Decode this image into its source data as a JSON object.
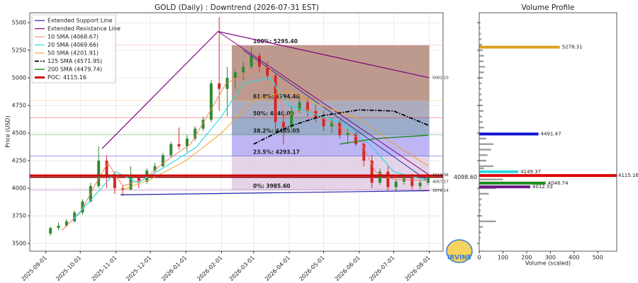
{
  "chart_data": {
    "type": "candlestick",
    "title": "GOLD (Daily) : Downtrend (2026-07-31 EST)",
    "y_label": "Price (USD)",
    "xlim": [
      "2025-08-18",
      "2026-08-13"
    ],
    "xticks": [
      "2025-09-01",
      "2025-10-01",
      "2025-11-01",
      "2025-12-01",
      "2026-01-01",
      "2026-02-01",
      "2026-03-01",
      "2026-04-01",
      "2026-05-01",
      "2026-06-01",
      "2026-07-01",
      "2026-08-01"
    ],
    "ylim": [
      3430,
      5590
    ],
    "yticks": [
      3500,
      3750,
      4000,
      4250,
      4500,
      4750,
      5000,
      5250,
      5500
    ],
    "grid": true,
    "legend": "upper left",
    "up_color": "#2e8b2e",
    "down_color": "#d62728",
    "candles": {
      "x": [
        "2025-09-05",
        "2025-09-12",
        "2025-09-19",
        "2025-09-26",
        "2025-10-03",
        "2025-10-10",
        "2025-10-17",
        "2025-10-24",
        "2025-10-31",
        "2025-11-07",
        "2025-11-14",
        "2025-11-21",
        "2025-11-28",
        "2025-12-05",
        "2025-12-12",
        "2025-12-19",
        "2025-12-26",
        "2026-01-02",
        "2026-01-09",
        "2026-01-16",
        "2026-01-23",
        "2026-01-30",
        "2026-02-06",
        "2026-02-13",
        "2026-02-20",
        "2026-02-27",
        "2026-03-06",
        "2026-03-13",
        "2026-03-20",
        "2026-03-27",
        "2026-04-03",
        "2026-04-10",
        "2026-04-17",
        "2026-04-24",
        "2026-05-01",
        "2026-05-08",
        "2026-05-15",
        "2026-05-22",
        "2026-05-29",
        "2026-06-05",
        "2026-06-12",
        "2026-06-19",
        "2026-06-26",
        "2026-07-03",
        "2026-07-10",
        "2026-07-17",
        "2026-07-24",
        "2026-07-31"
      ],
      "open": [
        3590,
        3640,
        3660,
        3700,
        3780,
        3880,
        4020,
        4250,
        4100,
        4000,
        3990,
        4100,
        4060,
        4160,
        4200,
        4300,
        4400,
        4380,
        4450,
        4540,
        4620,
        4950,
        4900,
        5000,
        5050,
        5100,
        5200,
        5100,
        5020,
        4600,
        4550,
        4700,
        4780,
        4700,
        4640,
        4560,
        4600,
        4480,
        4500,
        4400,
        4250,
        4050,
        4150,
        4010,
        4060,
        4090,
        4020,
        4050
      ],
      "high": [
        3650,
        3690,
        3720,
        3800,
        3900,
        4050,
        4380,
        4300,
        4150,
        4030,
        4200,
        4120,
        4180,
        4230,
        4320,
        4420,
        4550,
        4480,
        4560,
        4650,
        4980,
        5550,
        5100,
        5080,
        5150,
        5280,
        5230,
        5150,
        5040,
        4700,
        4750,
        4850,
        4820,
        4760,
        4700,
        4640,
        4620,
        4540,
        4510,
        4420,
        4300,
        4180,
        4200,
        4080,
        4120,
        4130,
        4080,
        4110
      ],
      "low": [
        3570,
        3620,
        3650,
        3690,
        3760,
        3870,
        4000,
        4000,
        3950,
        3930,
        3980,
        4000,
        4040,
        4140,
        4190,
        4280,
        4350,
        4330,
        4430,
        4520,
        4600,
        4700,
        4650,
        4900,
        4980,
        5080,
        5050,
        4980,
        4500,
        4400,
        4520,
        4680,
        4650,
        4600,
        4520,
        4500,
        4450,
        4400,
        4380,
        4200,
        4000,
        4030,
        3980,
        3970,
        4030,
        3990,
        3990,
        4030
      ],
      "close": [
        3640,
        3660,
        3700,
        3780,
        3880,
        4020,
        4250,
        4100,
        4000,
        3990,
        4100,
        4060,
        4160,
        4200,
        4300,
        4400,
        4380,
        4450,
        4540,
        4620,
        4950,
        4900,
        5000,
        5050,
        5100,
        5200,
        5100,
        5020,
        4600,
        4550,
        4700,
        4780,
        4700,
        4640,
        4560,
        4600,
        4480,
        4500,
        4400,
        4250,
        4050,
        4150,
        4010,
        4060,
        4090,
        4020,
        4050,
        4100
      ]
    },
    "series": [
      {
        "name": "Extended Support Line",
        "color": "#1f1fa8",
        "width": 1.2,
        "x": [
          "2025-11-05",
          "2026-08-01"
        ],
        "values": [
          3940,
          3978.14
        ]
      },
      {
        "name": "Extended Resistance Line",
        "color": "#800080",
        "width": 1.2,
        "x": [
          "2025-10-20",
          "2026-01-29",
          "2026-08-01"
        ],
        "values": [
          4360,
          5420,
          5001.1
        ]
      },
      {
        "name": "10 SMA (4068.67)",
        "color": "#f08060",
        "width": 1,
        "x": [
          "2025-09-15",
          "2025-10-01",
          "2025-10-15",
          "2025-10-25",
          "2025-11-07",
          "2025-11-25",
          "2025-12-15",
          "2026-01-05",
          "2026-01-25",
          "2026-02-05",
          "2026-02-25",
          "2026-03-15",
          "2026-03-28",
          "2026-04-15",
          "2026-05-10",
          "2026-06-01",
          "2026-06-15",
          "2026-07-01",
          "2026-07-31"
        ],
        "values": [
          3620,
          3780,
          4050,
          4230,
          4020,
          4080,
          4250,
          4400,
          4750,
          4950,
          5050,
          5100,
          4650,
          4720,
          4580,
          4450,
          4150,
          4080,
          4068.67
        ]
      },
      {
        "name": "20 SMA (4069.66)",
        "color": "#30d8e0",
        "width": 1.2,
        "x": [
          "2025-09-25",
          "2025-10-15",
          "2025-11-01",
          "2025-11-20",
          "2025-12-15",
          "2026-01-10",
          "2026-02-01",
          "2026-02-20",
          "2026-03-15",
          "2026-04-01",
          "2026-04-20",
          "2026-05-15",
          "2026-06-10",
          "2026-07-01",
          "2026-07-31"
        ],
        "values": [
          3720,
          3950,
          4150,
          4050,
          4200,
          4370,
          4650,
          4950,
          5000,
          4750,
          4680,
          4600,
          4400,
          4150,
          4069.66
        ]
      },
      {
        "name": "50 SMA (4201.91)",
        "color": "#f0a020",
        "width": 1,
        "x": [
          "2025-11-05",
          "2025-12-01",
          "2026-01-01",
          "2026-02-01",
          "2026-03-01",
          "2026-04-01",
          "2026-05-01",
          "2026-06-01",
          "2026-07-01",
          "2026-07-31"
        ],
        "values": [
          3980,
          4080,
          4250,
          4500,
          4800,
          4880,
          4740,
          4630,
          4400,
          4201.91
        ]
      },
      {
        "name": "125 SMA (4571.95)",
        "color": "#000000",
        "width": 1.8,
        "dash": "dashdot",
        "x": [
          "2026-03-01",
          "2026-04-01",
          "2026-05-01",
          "2026-06-01",
          "2026-07-01",
          "2026-07-31"
        ],
        "values": [
          4400,
          4560,
          4660,
          4710,
          4700,
          4571.95
        ]
      },
      {
        "name": "200 SMA (4479.74)",
        "color": "#1a8a1a",
        "width": 1.4,
        "x": [
          "2026-05-15",
          "2026-06-15",
          "2026-07-31"
        ],
        "values": [
          4400,
          4450,
          4479.74
        ]
      },
      {
        "name": "POC: 4115.16",
        "color": "#cc0000",
        "width": 3,
        "hline": true,
        "values": [
          4115.16
        ]
      }
    ],
    "trend_lines": [
      {
        "color": "#800080",
        "x": [
          "2026-01-29",
          "2026-08-01"
        ],
        "values": [
          5420,
          4119.36
        ]
      },
      {
        "color": "#3030a0",
        "x": [
          "2026-02-20",
          "2026-08-01"
        ],
        "values": [
          5250,
          4057.17
        ]
      }
    ],
    "end_labels": [
      {
        "value": 5001.1,
        "label": "5001.10",
        "color": "#800080"
      },
      {
        "value": 4119.36,
        "label": "4119.36",
        "color": "#800080"
      },
      {
        "value": 4057.17,
        "label": "4057.17",
        "color": "#3030a0"
      },
      {
        "value": 3978.14,
        "label": "3978.14",
        "color": "#1f1fa8"
      }
    ],
    "price_line": {
      "value": 4098.6,
      "label": "4098.60",
      "color": "#8b0000"
    },
    "fib": {
      "x": [
        "2026-02-10",
        "2026-08-01"
      ],
      "levels": [
        {
          "value": 3985.6,
          "label": "0%: 3985.60",
          "color": "#800080",
          "zone": "#dcc6e0"
        },
        {
          "value": 4293.17,
          "label": "23.5%: 4293.17",
          "color": "#0000cc",
          "zone": "#a89cf0"
        },
        {
          "value": 4485.05,
          "label": "38.2%: 4485.05",
          "color": "#1a8a1a",
          "zone": "#7890b8"
        },
        {
          "value": 4640.0,
          "label": "50%: 4640.00",
          "color": "#e00000",
          "zone": "#9090a8"
        },
        {
          "value": 4794.4,
          "label": "61.8%: 4794.40",
          "color": "#f0a020",
          "zone": "#a87868"
        },
        {
          "value": 5295.4,
          "label": "100%: 5295.40",
          "color": "#ff80c0"
        }
      ]
    },
    "logo_text": "IRVINE",
    "volume_profile": {
      "title": "Volume Profile",
      "x_label": "Volume (scaled)",
      "xlim": [
        0,
        580
      ],
      "xticks": [
        0,
        100,
        200,
        300,
        400,
        500
      ],
      "bar_color": "#a0a0a0",
      "bars": [
        {
          "price": 5500,
          "volume": 5
        },
        {
          "price": 5450,
          "volume": 5
        },
        {
          "price": 5400,
          "volume": 8
        },
        {
          "price": 5350,
          "volume": 10
        },
        {
          "price": 5300,
          "volume": 12
        },
        {
          "price": 5250,
          "volume": 15
        },
        {
          "price": 5200,
          "volume": 20
        },
        {
          "price": 5150,
          "volume": 18
        },
        {
          "price": 5100,
          "volume": 25
        },
        {
          "price": 5050,
          "volume": 20
        },
        {
          "price": 5000,
          "volume": 15
        },
        {
          "price": 4950,
          "volume": 10
        },
        {
          "price": 4900,
          "volume": 8
        },
        {
          "price": 4850,
          "volume": 10
        },
        {
          "price": 4800,
          "volume": 12
        },
        {
          "price": 4750,
          "volume": 15
        },
        {
          "price": 4700,
          "volume": 18
        },
        {
          "price": 4650,
          "volume": 12
        },
        {
          "price": 4600,
          "volume": 15
        },
        {
          "price": 4550,
          "volume": 20
        },
        {
          "price": 4450,
          "volume": 30
        },
        {
          "price": 4400,
          "volume": 60
        },
        {
          "price": 4350,
          "volume": 50
        },
        {
          "price": 4300,
          "volume": 35
        },
        {
          "price": 4250,
          "volume": 30
        },
        {
          "price": 4200,
          "volume": 60
        },
        {
          "price": 4180,
          "volume": 20
        },
        {
          "price": 4080,
          "volume": 100
        },
        {
          "price": 4000,
          "volume": 70
        },
        {
          "price": 3950,
          "volume": 40
        },
        {
          "price": 3900,
          "volume": 10
        },
        {
          "price": 3850,
          "volume": 8
        },
        {
          "price": 3800,
          "volume": 6
        },
        {
          "price": 3750,
          "volume": 12
        },
        {
          "price": 3700,
          "volume": 70
        },
        {
          "price": 3650,
          "volume": 15
        },
        {
          "price": 3600,
          "volume": 8
        },
        {
          "price": 3550,
          "volume": 5
        }
      ],
      "highlights": [
        {
          "price": 5278.31,
          "volume": 340,
          "color": "#e0a020"
        },
        {
          "price": 4491.47,
          "volume": 250,
          "color": "#1010d0"
        },
        {
          "price": 4149.37,
          "volume": 165,
          "color": "#30d8e0"
        },
        {
          "price": 4115.16,
          "volume": 580,
          "color": "#e00000"
        },
        {
          "price": 4046.74,
          "volume": 280,
          "color": "#1a8a1a"
        },
        {
          "price": 4012.53,
          "volume": 215,
          "color": "#6a1a8a"
        }
      ]
    }
  }
}
